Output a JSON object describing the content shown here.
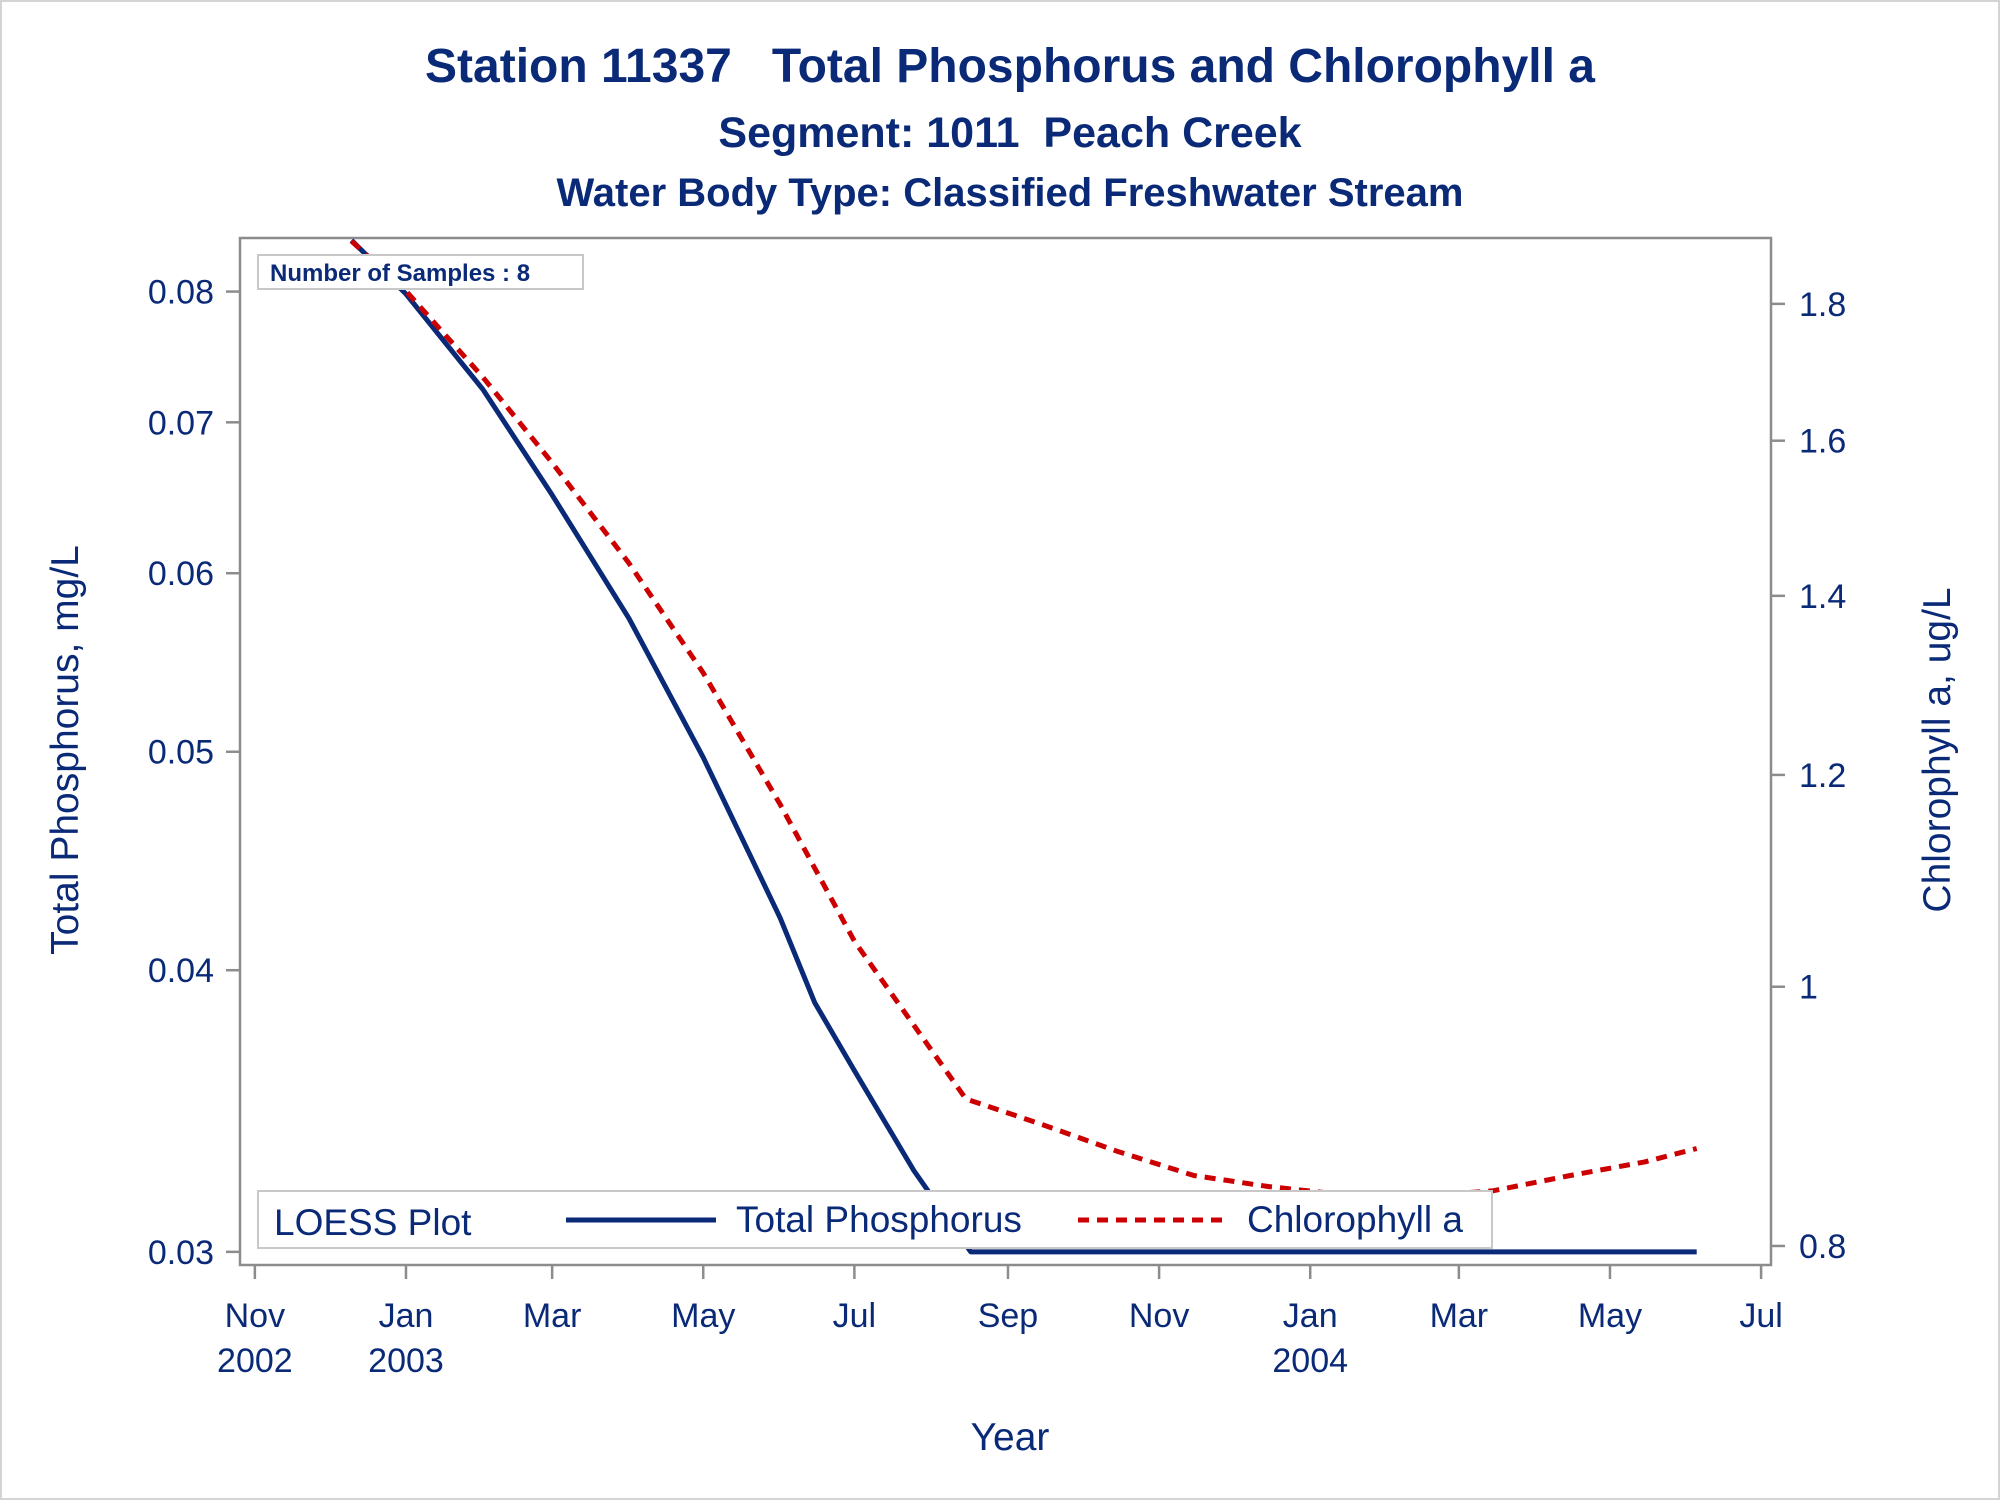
{
  "chart_data": {
    "type": "line",
    "title": "Station 11337   Total Phosphorus and Chlorophyll a",
    "subtitle": "Segment: 1011  Peach Creek",
    "subtitle2": "Water Body Type: Classified Freshwater Stream",
    "xlabel": "Year",
    "ylabel_left": "Total Phosphorus, mg/L",
    "ylabel_right": "Chlorophyll a, ug/L",
    "left_axis_scale": "log",
    "right_axis_scale": "log",
    "ylim_left": [
      0.0296,
      0.0845
    ],
    "ylim_right": [
      0.787,
      1.905
    ],
    "xlim": [
      "2002-10-26",
      "2004-07-05"
    ],
    "left_ticks": [
      {
        "value": 0.03,
        "label": "0.03"
      },
      {
        "value": 0.04,
        "label": "0.04"
      },
      {
        "value": 0.05,
        "label": "0.05"
      },
      {
        "value": 0.06,
        "label": "0.06"
      },
      {
        "value": 0.07,
        "label": "0.07"
      },
      {
        "value": 0.08,
        "label": "0.08"
      }
    ],
    "right_ticks": [
      {
        "value": 0.8,
        "label": "0.8"
      },
      {
        "value": 1.0,
        "label": "1"
      },
      {
        "value": 1.2,
        "label": "1.2"
      },
      {
        "value": 1.4,
        "label": "1.4"
      },
      {
        "value": 1.6,
        "label": "1.6"
      },
      {
        "value": 1.8,
        "label": "1.8"
      }
    ],
    "x_ticks": [
      {
        "date": "2002-11-01",
        "label": "Nov",
        "year": "2002"
      },
      {
        "date": "2003-01-01",
        "label": "Jan",
        "year": "2003"
      },
      {
        "date": "2003-03-01",
        "label": "Mar",
        "year": ""
      },
      {
        "date": "2003-05-01",
        "label": "May",
        "year": ""
      },
      {
        "date": "2003-07-01",
        "label": "Jul",
        "year": ""
      },
      {
        "date": "2003-09-01",
        "label": "Sep",
        "year": ""
      },
      {
        "date": "2003-11-01",
        "label": "Nov",
        "year": ""
      },
      {
        "date": "2004-01-01",
        "label": "Jan",
        "year": "2004"
      },
      {
        "date": "2004-03-01",
        "label": "Mar",
        "year": ""
      },
      {
        "date": "2004-05-01",
        "label": "May",
        "year": ""
      },
      {
        "date": "2004-07-01",
        "label": "Jul",
        "year": ""
      }
    ],
    "series": [
      {
        "name": "Total Phosphorus",
        "axis": "left",
        "color": "#0a2a78",
        "dash": "solid",
        "points": [
          {
            "x": "2002-12-10",
            "y": 0.0843
          },
          {
            "x": "2003-01-01",
            "y": 0.0798
          },
          {
            "x": "2003-02-01",
            "y": 0.0724
          },
          {
            "x": "2003-03-01",
            "y": 0.065
          },
          {
            "x": "2003-04-01",
            "y": 0.0573
          },
          {
            "x": "2003-05-01",
            "y": 0.0497
          },
          {
            "x": "2003-06-01",
            "y": 0.0422
          },
          {
            "x": "2003-06-15",
            "y": 0.0387
          },
          {
            "x": "2003-07-01",
            "y": 0.0361
          },
          {
            "x": "2003-07-25",
            "y": 0.0326
          },
          {
            "x": "2003-08-17",
            "y": 0.03
          },
          {
            "x": "2003-10-01",
            "y": 0.03
          },
          {
            "x": "2003-12-01",
            "y": 0.03
          },
          {
            "x": "2004-02-01",
            "y": 0.03
          },
          {
            "x": "2004-04-01",
            "y": 0.03
          },
          {
            "x": "2004-06-05",
            "y": 0.03
          }
        ]
      },
      {
        "name": "Chlorophyll a",
        "axis": "right",
        "color": "#cc0000",
        "dash": "dashed",
        "points": [
          {
            "x": "2002-12-10",
            "y": 1.9
          },
          {
            "x": "2003-01-01",
            "y": 1.82
          },
          {
            "x": "2003-02-01",
            "y": 1.69
          },
          {
            "x": "2003-03-01",
            "y": 1.57
          },
          {
            "x": "2003-04-01",
            "y": 1.44
          },
          {
            "x": "2003-05-01",
            "y": 1.31
          },
          {
            "x": "2003-06-01",
            "y": 1.17
          },
          {
            "x": "2003-07-01",
            "y": 1.04
          },
          {
            "x": "2003-08-15",
            "y": 0.908
          },
          {
            "x": "2003-09-15",
            "y": 0.888
          },
          {
            "x": "2003-10-15",
            "y": 0.868
          },
          {
            "x": "2003-11-15",
            "y": 0.85
          },
          {
            "x": "2003-12-15",
            "y": 0.842
          },
          {
            "x": "2004-01-15",
            "y": 0.836
          },
          {
            "x": "2004-02-15",
            "y": 0.835
          },
          {
            "x": "2004-03-15",
            "y": 0.839
          },
          {
            "x": "2004-04-15",
            "y": 0.85
          },
          {
            "x": "2004-05-15",
            "y": 0.86
          },
          {
            "x": "2004-06-05",
            "y": 0.87
          }
        ]
      }
    ],
    "inset_label": "Number of Samples : 8",
    "legend": {
      "title": "LOESS Plot",
      "position": "bottom-left",
      "items": [
        "Total Phosphorus",
        "Chlorophyll a"
      ]
    },
    "grid": false
  }
}
